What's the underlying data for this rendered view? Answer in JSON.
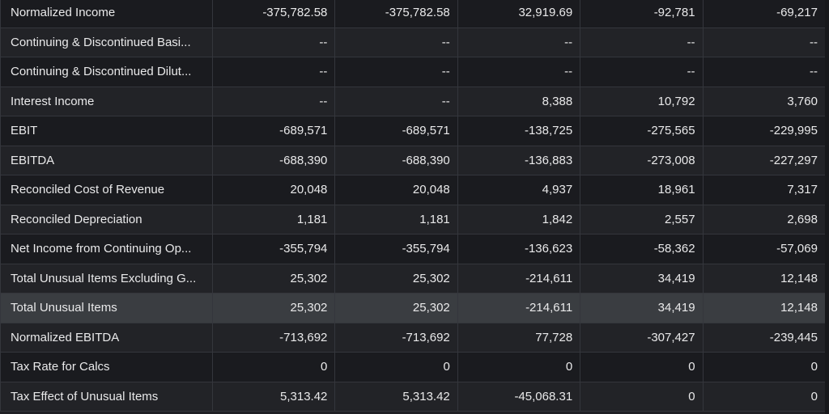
{
  "table": {
    "rows": [
      {
        "label": "Normalized Income",
        "values": [
          "-375,782.58",
          "-375,782.58",
          "32,919.69",
          "-92,781",
          "-69,217"
        ]
      },
      {
        "label": "Continuing & Discontinued Basi...",
        "values": [
          "--",
          "--",
          "--",
          "--",
          "--"
        ]
      },
      {
        "label": "Continuing & Discontinued Dilut...",
        "values": [
          "--",
          "--",
          "--",
          "--",
          "--"
        ]
      },
      {
        "label": "Interest Income",
        "values": [
          "--",
          "--",
          "8,388",
          "10,792",
          "3,760"
        ]
      },
      {
        "label": "EBIT",
        "values": [
          "-689,571",
          "-689,571",
          "-138,725",
          "-275,565",
          "-229,995"
        ]
      },
      {
        "label": "EBITDA",
        "values": [
          "-688,390",
          "-688,390",
          "-136,883",
          "-273,008",
          "-227,297"
        ]
      },
      {
        "label": "Reconciled Cost of Revenue",
        "values": [
          "20,048",
          "20,048",
          "4,937",
          "18,961",
          "7,317"
        ]
      },
      {
        "label": "Reconciled Depreciation",
        "values": [
          "1,181",
          "1,181",
          "1,842",
          "2,557",
          "2,698"
        ]
      },
      {
        "label": "Net Income from Continuing Op...",
        "values": [
          "-355,794",
          "-355,794",
          "-136,623",
          "-58,362",
          "-57,069"
        ]
      },
      {
        "label": "Total Unusual Items Excluding G...",
        "values": [
          "25,302",
          "25,302",
          "-214,611",
          "34,419",
          "12,148"
        ]
      },
      {
        "label": "Total Unusual Items",
        "values": [
          "25,302",
          "25,302",
          "-214,611",
          "34,419",
          "12,148"
        ],
        "highlighted": true
      },
      {
        "label": "Normalized EBITDA",
        "values": [
          "-713,692",
          "-713,692",
          "77,728",
          "-307,427",
          "-239,445"
        ]
      },
      {
        "label": "Tax Rate for Calcs",
        "values": [
          "0",
          "0",
          "0",
          "0",
          "0"
        ]
      },
      {
        "label": "Tax Effect of Unusual Items",
        "values": [
          "5,313.42",
          "5,313.42",
          "-45,068.31",
          "0",
          "0"
        ]
      }
    ]
  }
}
